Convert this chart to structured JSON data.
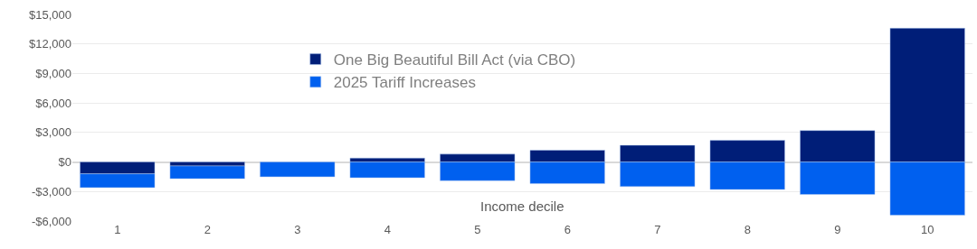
{
  "chart_data": {
    "type": "bar",
    "stacked": true,
    "xlabel": "Income decile",
    "categories": [
      "1",
      "2",
      "3",
      "4",
      "5",
      "6",
      "7",
      "8",
      "9",
      "10"
    ],
    "series": [
      {
        "name": "One Big Beautiful Bill Act (via CBO)",
        "color": "#001e78",
        "values": [
          -1200,
          -400,
          null,
          400,
          800,
          1200,
          1700,
          2200,
          3200,
          13600
        ]
      },
      {
        "name": "2025 Tariff Increases",
        "color": "#0060ef",
        "values": [
          -1400,
          -1300,
          -1500,
          -1600,
          -1900,
          -2200,
          -2500,
          -2800,
          -3300,
          -5400
        ]
      }
    ],
    "ylim": [
      -6000,
      15000
    ],
    "yticks": [
      {
        "value": -6000,
        "label": "-$6,000"
      },
      {
        "value": -3000,
        "label": "-$3,000"
      },
      {
        "value": 0,
        "label": "$0"
      },
      {
        "value": 3000,
        "label": "$3,000"
      },
      {
        "value": 6000,
        "label": "$6,000"
      },
      {
        "value": 9000,
        "label": "$9,000"
      },
      {
        "value": 12000,
        "label": "$12,000"
      },
      {
        "value": 15000,
        "label": "$15,000"
      }
    ],
    "grid": "y",
    "legend": "top"
  }
}
